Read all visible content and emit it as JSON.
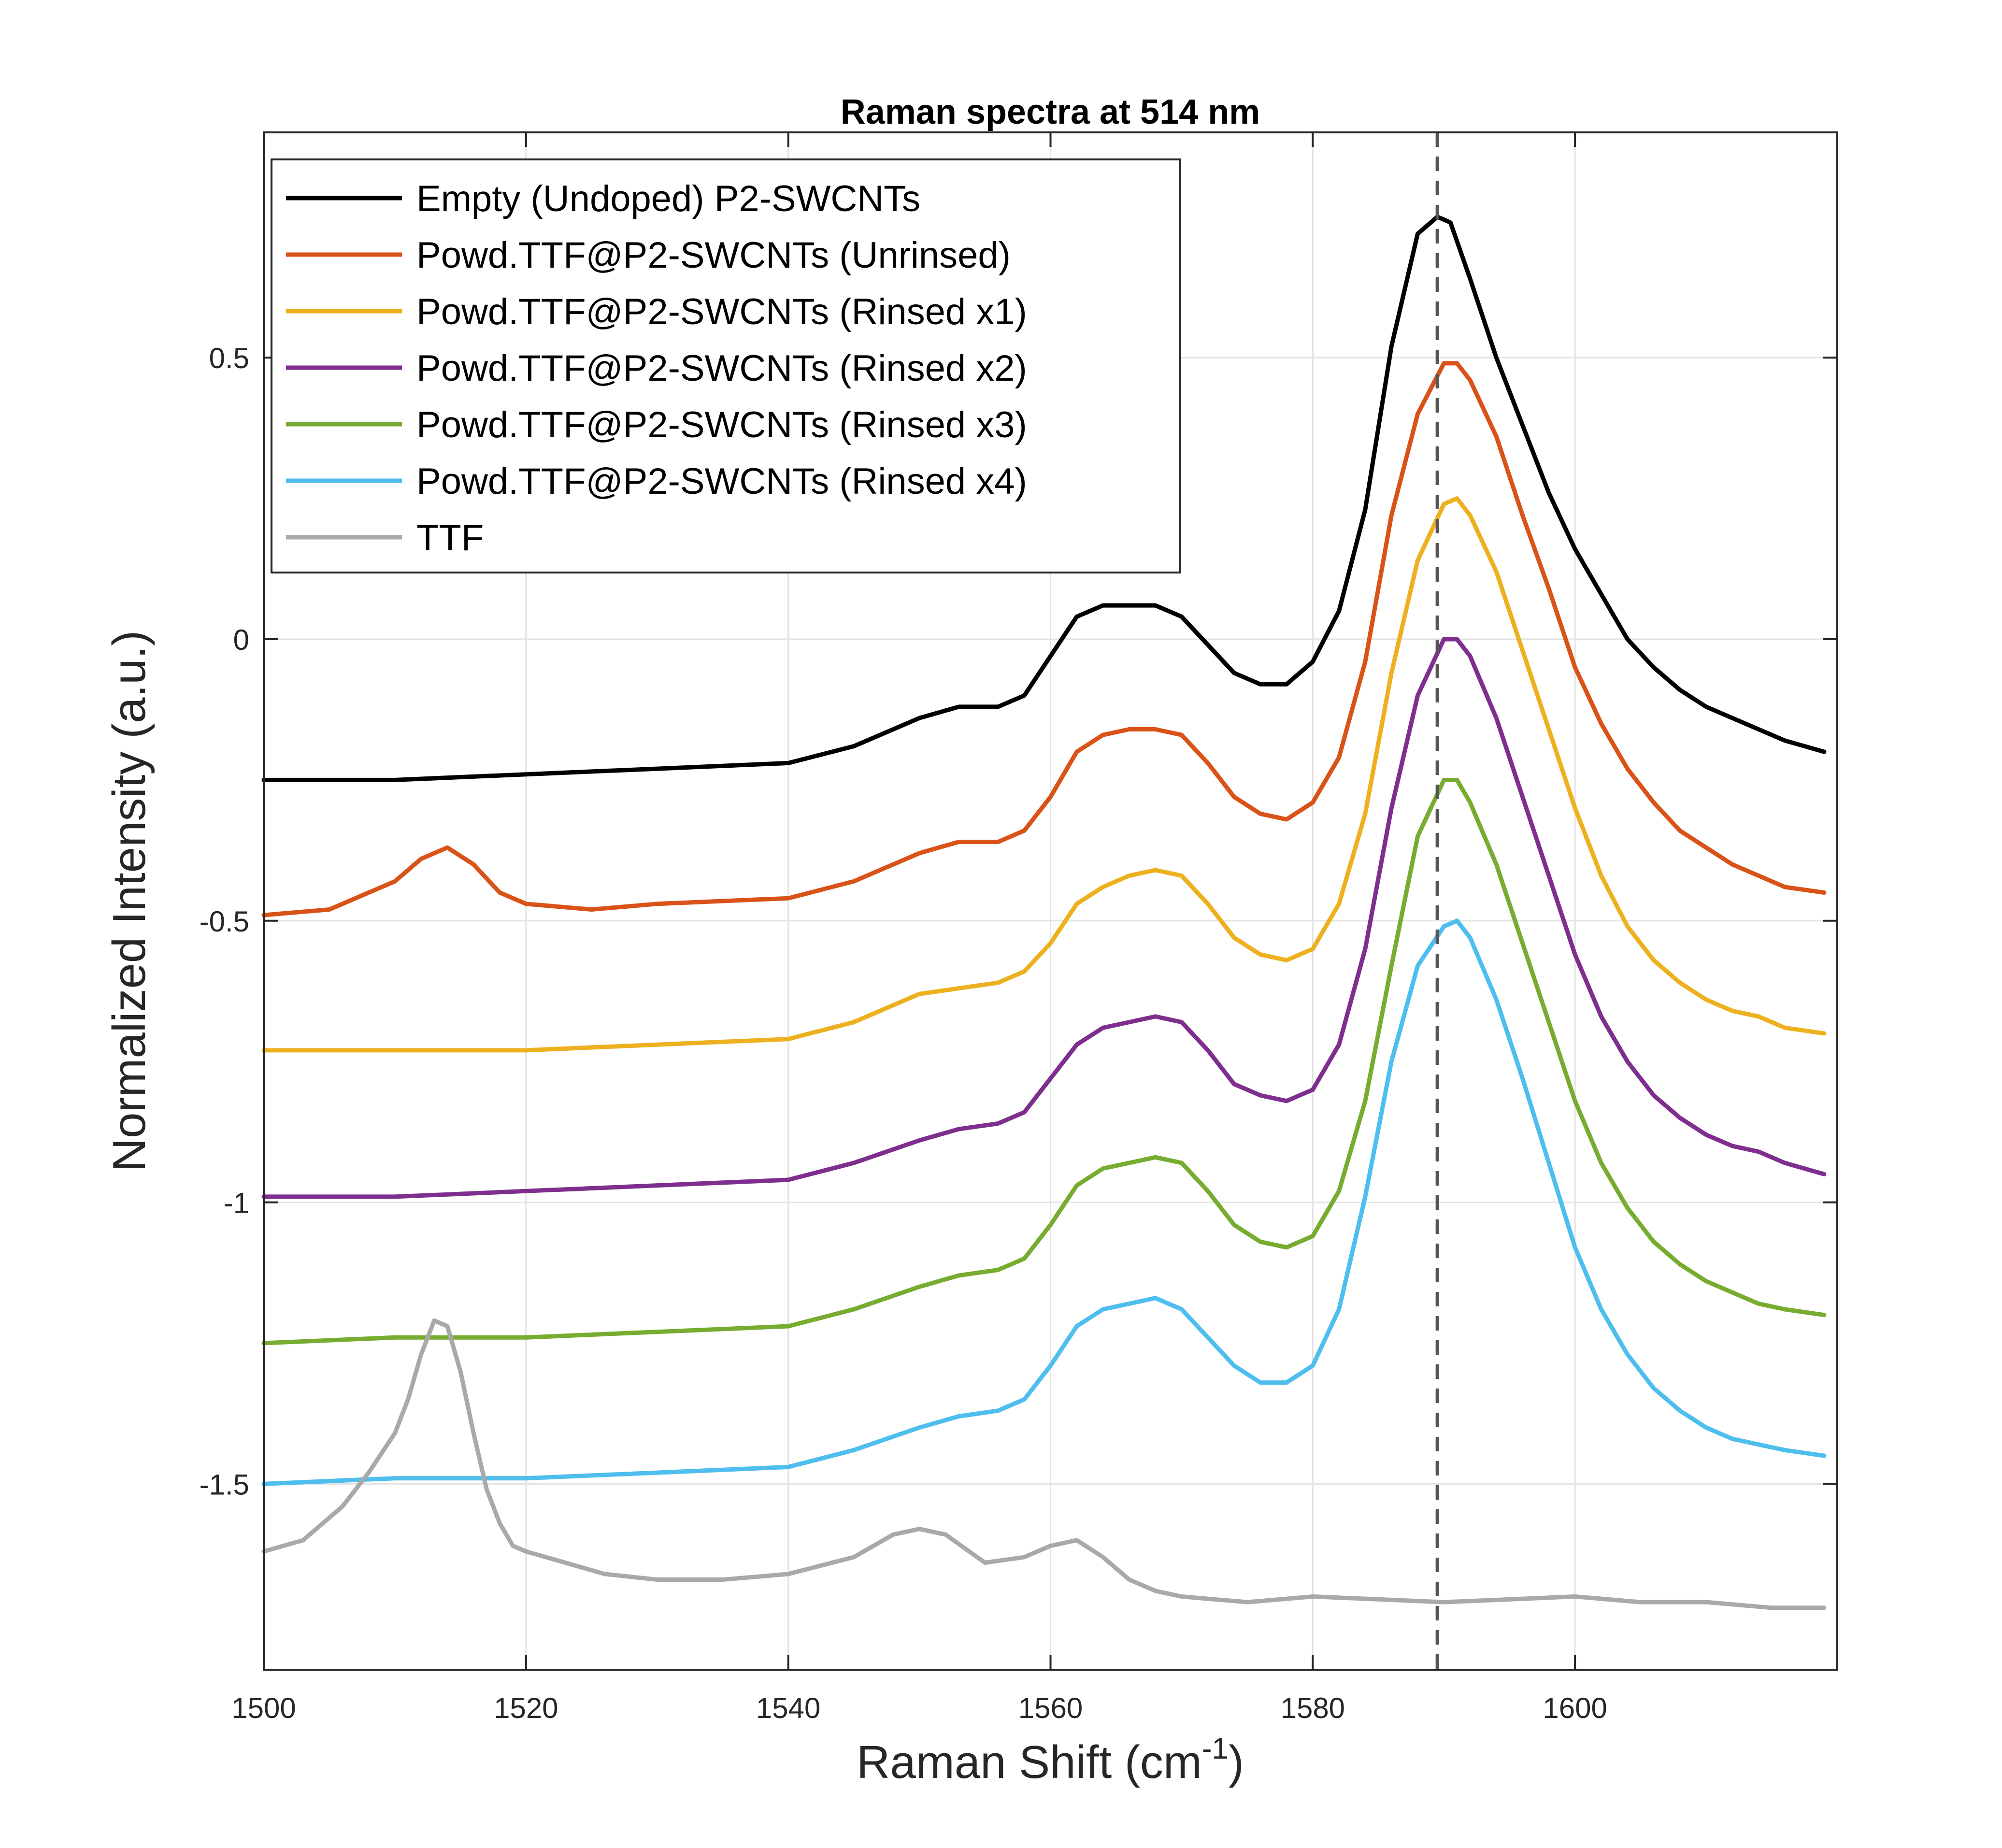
{
  "chart_data": {
    "type": "line",
    "title": "Raman spectra at 514 nm",
    "xlabel": "Raman Shift (cm",
    "xlabel_sup": "-1",
    "xlabel_suffix": ")",
    "ylabel": "Normalized Intensity (a.u.)",
    "xlim": [
      1500,
      1620
    ],
    "ylim": [
      -1.83,
      0.9
    ],
    "xticks": [
      1500,
      1520,
      1540,
      1560,
      1580,
      1600
    ],
    "xtick_labels": [
      "1500",
      "1520",
      "1540",
      "1560",
      "1580",
      "1600"
    ],
    "yticks": [
      0.5,
      0,
      -0.5,
      -1,
      -1.5
    ],
    "ytick_labels": [
      "0.5",
      "0",
      "-0.5",
      "-1",
      "-1.5"
    ],
    "grid": true,
    "legend_location": "top-left",
    "reference_line": {
      "x": 1589.5,
      "style": "dashed",
      "color": "#555555"
    },
    "series": [
      {
        "name": "Empty (Undoped) P2-SWCNTs",
        "color": "#000000",
        "x": [
          1500,
          1510,
          1520,
          1530,
          1540,
          1545,
          1550,
          1553,
          1556,
          1558,
          1560,
          1562,
          1564,
          1566,
          1568,
          1570,
          1572,
          1574,
          1576,
          1578,
          1580,
          1582,
          1584,
          1586,
          1588,
          1589.5,
          1590.5,
          1592,
          1594,
          1596,
          1598,
          1600,
          1602,
          1604,
          1606,
          1608,
          1610,
          1612,
          1614,
          1616,
          1619
        ],
        "y": [
          -0.25,
          -0.25,
          -0.24,
          -0.23,
          -0.22,
          -0.19,
          -0.14,
          -0.12,
          -0.12,
          -0.1,
          -0.03,
          0.04,
          0.06,
          0.06,
          0.06,
          0.04,
          -0.01,
          -0.06,
          -0.08,
          -0.08,
          -0.04,
          0.05,
          0.23,
          0.52,
          0.72,
          0.75,
          0.74,
          0.64,
          0.5,
          0.38,
          0.26,
          0.16,
          0.08,
          0.0,
          -0.05,
          -0.09,
          -0.12,
          -0.14,
          -0.16,
          -0.18,
          -0.2
        ]
      },
      {
        "name": "Powd.TTF@P2-SWCNTs (Unrinsed)",
        "color": "#D95319",
        "x": [
          1500,
          1505,
          1510,
          1512,
          1514,
          1516,
          1518,
          1520,
          1525,
          1530,
          1540,
          1545,
          1550,
          1553,
          1556,
          1558,
          1560,
          1562,
          1564,
          1566,
          1568,
          1570,
          1572,
          1574,
          1576,
          1578,
          1580,
          1582,
          1584,
          1586,
          1588,
          1590,
          1591,
          1592,
          1594,
          1596,
          1598,
          1600,
          1602,
          1604,
          1606,
          1608,
          1610,
          1612,
          1614,
          1616,
          1619
        ],
        "y": [
          -0.49,
          -0.48,
          -0.43,
          -0.39,
          -0.37,
          -0.4,
          -0.45,
          -0.47,
          -0.48,
          -0.47,
          -0.46,
          -0.43,
          -0.38,
          -0.36,
          -0.36,
          -0.34,
          -0.28,
          -0.2,
          -0.17,
          -0.16,
          -0.16,
          -0.17,
          -0.22,
          -0.28,
          -0.31,
          -0.32,
          -0.29,
          -0.21,
          -0.04,
          0.22,
          0.4,
          0.49,
          0.49,
          0.46,
          0.36,
          0.22,
          0.09,
          -0.05,
          -0.15,
          -0.23,
          -0.29,
          -0.34,
          -0.37,
          -0.4,
          -0.42,
          -0.44,
          -0.45
        ]
      },
      {
        "name": "Powd.TTF@P2-SWCNTs (Rinsed x1)",
        "color": "#EDB120",
        "x": [
          1500,
          1510,
          1520,
          1530,
          1540,
          1545,
          1550,
          1553,
          1556,
          1558,
          1560,
          1562,
          1564,
          1566,
          1568,
          1570,
          1572,
          1574,
          1576,
          1578,
          1580,
          1582,
          1584,
          1586,
          1588,
          1590,
          1591,
          1592,
          1594,
          1596,
          1598,
          1600,
          1602,
          1604,
          1606,
          1608,
          1610,
          1612,
          1614,
          1616,
          1619
        ],
        "y": [
          -0.73,
          -0.73,
          -0.73,
          -0.72,
          -0.71,
          -0.68,
          -0.63,
          -0.62,
          -0.61,
          -0.59,
          -0.54,
          -0.47,
          -0.44,
          -0.42,
          -0.41,
          -0.42,
          -0.47,
          -0.53,
          -0.56,
          -0.57,
          -0.55,
          -0.47,
          -0.31,
          -0.06,
          0.14,
          0.24,
          0.25,
          0.22,
          0.12,
          -0.02,
          -0.16,
          -0.3,
          -0.42,
          -0.51,
          -0.57,
          -0.61,
          -0.64,
          -0.66,
          -0.67,
          -0.69,
          -0.7
        ]
      },
      {
        "name": "Powd.TTF@P2-SWCNTs (Rinsed x2)",
        "color": "#7E2F8E",
        "x": [
          1500,
          1510,
          1520,
          1530,
          1540,
          1545,
          1550,
          1553,
          1556,
          1558,
          1560,
          1562,
          1564,
          1566,
          1568,
          1570,
          1572,
          1574,
          1576,
          1578,
          1580,
          1582,
          1584,
          1586,
          1588,
          1590,
          1591,
          1592,
          1594,
          1596,
          1598,
          1600,
          1602,
          1604,
          1606,
          1608,
          1610,
          1612,
          1614,
          1616,
          1619
        ],
        "y": [
          -0.99,
          -0.99,
          -0.98,
          -0.97,
          -0.96,
          -0.93,
          -0.89,
          -0.87,
          -0.86,
          -0.84,
          -0.78,
          -0.72,
          -0.69,
          -0.68,
          -0.67,
          -0.68,
          -0.73,
          -0.79,
          -0.81,
          -0.82,
          -0.8,
          -0.72,
          -0.55,
          -0.3,
          -0.1,
          0.0,
          0.0,
          -0.03,
          -0.14,
          -0.28,
          -0.42,
          -0.56,
          -0.67,
          -0.75,
          -0.81,
          -0.85,
          -0.88,
          -0.9,
          -0.91,
          -0.93,
          -0.95
        ]
      },
      {
        "name": "Powd.TTF@P2-SWCNTs (Rinsed x3)",
        "color": "#77AC30",
        "x": [
          1500,
          1510,
          1520,
          1530,
          1540,
          1545,
          1550,
          1553,
          1556,
          1558,
          1560,
          1562,
          1564,
          1566,
          1568,
          1570,
          1572,
          1574,
          1576,
          1578,
          1580,
          1582,
          1584,
          1586,
          1588,
          1590,
          1591,
          1592,
          1594,
          1596,
          1598,
          1600,
          1602,
          1604,
          1606,
          1608,
          1610,
          1612,
          1614,
          1616,
          1619
        ],
        "y": [
          -1.25,
          -1.24,
          -1.24,
          -1.23,
          -1.22,
          -1.19,
          -1.15,
          -1.13,
          -1.12,
          -1.1,
          -1.04,
          -0.97,
          -0.94,
          -0.93,
          -0.92,
          -0.93,
          -0.98,
          -1.04,
          -1.07,
          -1.08,
          -1.06,
          -0.98,
          -0.82,
          -0.58,
          -0.35,
          -0.25,
          -0.25,
          -0.29,
          -0.4,
          -0.54,
          -0.68,
          -0.82,
          -0.93,
          -1.01,
          -1.07,
          -1.11,
          -1.14,
          -1.16,
          -1.18,
          -1.19,
          -1.2
        ]
      },
      {
        "name": "Powd.TTF@P2-SWCNTs (Rinsed x4)",
        "color": "#4DBEEE",
        "x": [
          1500,
          1510,
          1520,
          1530,
          1540,
          1545,
          1550,
          1553,
          1556,
          1558,
          1560,
          1562,
          1564,
          1566,
          1568,
          1570,
          1572,
          1574,
          1576,
          1578,
          1580,
          1582,
          1584,
          1586,
          1588,
          1590,
          1591,
          1592,
          1594,
          1596,
          1598,
          1600,
          1602,
          1604,
          1606,
          1608,
          1610,
          1612,
          1614,
          1616,
          1619
        ],
        "y": [
          -1.5,
          -1.49,
          -1.49,
          -1.48,
          -1.47,
          -1.44,
          -1.4,
          -1.38,
          -1.37,
          -1.35,
          -1.29,
          -1.22,
          -1.19,
          -1.18,
          -1.17,
          -1.19,
          -1.24,
          -1.29,
          -1.32,
          -1.32,
          -1.29,
          -1.19,
          -0.99,
          -0.75,
          -0.58,
          -0.51,
          -0.5,
          -0.53,
          -0.64,
          -0.78,
          -0.93,
          -1.08,
          -1.19,
          -1.27,
          -1.33,
          -1.37,
          -1.4,
          -1.42,
          -1.43,
          -1.44,
          -1.45
        ]
      },
      {
        "name": "TTF",
        "color": "#A9A9A9",
        "x": [
          1500,
          1503,
          1506,
          1508,
          1510,
          1511,
          1512,
          1513,
          1514,
          1515,
          1516,
          1517,
          1518,
          1519,
          1520,
          1523,
          1526,
          1530,
          1535,
          1540,
          1545,
          1548,
          1550,
          1552,
          1555,
          1558,
          1560,
          1562,
          1564,
          1566,
          1568,
          1570,
          1575,
          1580,
          1590,
          1600,
          1605,
          1610,
          1615,
          1619
        ],
        "y": [
          -1.62,
          -1.6,
          -1.54,
          -1.48,
          -1.41,
          -1.35,
          -1.27,
          -1.21,
          -1.22,
          -1.3,
          -1.41,
          -1.51,
          -1.57,
          -1.61,
          -1.62,
          -1.64,
          -1.66,
          -1.67,
          -1.67,
          -1.66,
          -1.63,
          -1.59,
          -1.58,
          -1.59,
          -1.64,
          -1.63,
          -1.61,
          -1.6,
          -1.63,
          -1.67,
          -1.69,
          -1.7,
          -1.71,
          -1.7,
          -1.71,
          -1.7,
          -1.71,
          -1.71,
          -1.72,
          -1.72
        ]
      }
    ]
  }
}
